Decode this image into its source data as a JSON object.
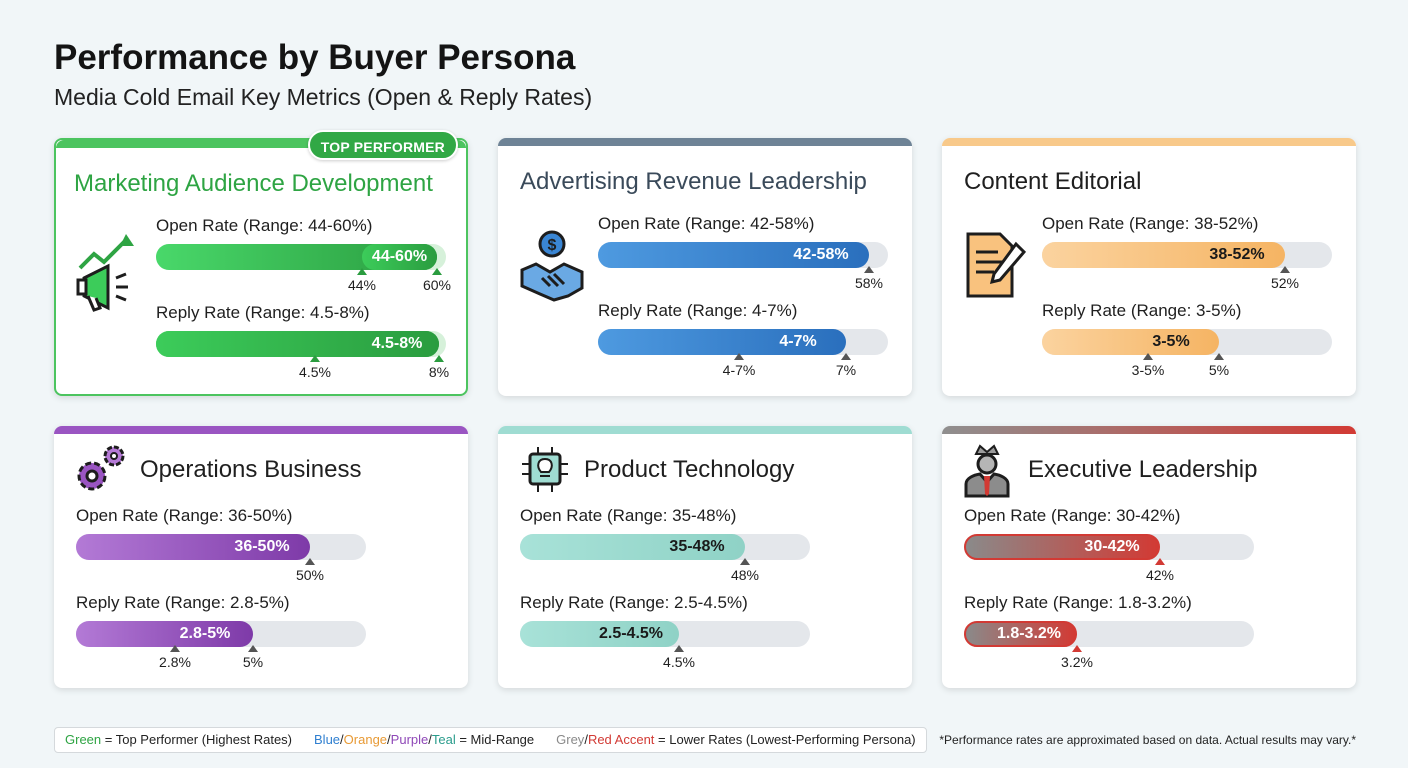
{
  "title": "Performance by Buyer Persona",
  "subtitle": "Media Cold Email Key Metrics (Open & Reply Rates)",
  "chart_data": {
    "type": "bar",
    "title": "Performance by Buyer Persona",
    "subtitle": "Media Cold Email Key Metrics (Open & Reply Rates)",
    "unit": "%",
    "scale_max": 100,
    "personas": [
      {
        "name": "Marketing Audience Development",
        "badge": "TOP PERFORMER",
        "icon": "megaphone-growth-icon",
        "color": "#3ccc5a",
        "open": {
          "label": "Open Rate (Range: 44-60%)",
          "text": "44-60%",
          "low": 44,
          "high": 60,
          "ticks": [
            "44%",
            "60%"
          ]
        },
        "reply": {
          "label": "Reply Rate (Range: 4.5-8%)",
          "text": "4.5-8%",
          "low": 4.5,
          "high": 8,
          "ticks": [
            "4.5%",
            "8%"
          ]
        }
      },
      {
        "name": "Advertising Revenue Leadership",
        "badge": "",
        "icon": "handshake-dollar-icon",
        "color": "#3a86d4",
        "open": {
          "label": "Open Rate (Range: 42-58%)",
          "text": "42-58%",
          "low": 42,
          "high": 58,
          "ticks": [
            "58%"
          ]
        },
        "reply": {
          "label": "Reply Rate (Range: 4-7%)",
          "text": "4-7%",
          "low": 4,
          "high": 7,
          "ticks": [
            "4-7%",
            "7%"
          ]
        }
      },
      {
        "name": "Content Editorial",
        "badge": "",
        "icon": "document-pen-icon",
        "color": "#f9c27e",
        "open": {
          "label": "Open Rate (Range: 38-52%)",
          "text": "38-52%",
          "low": 38,
          "high": 52,
          "ticks": [
            "52%"
          ]
        },
        "reply": {
          "label": "Reply Rate (Range: 3-5%)",
          "text": "3-5%",
          "low": 3,
          "high": 5,
          "ticks": [
            "3-5%",
            "5%"
          ]
        }
      },
      {
        "name": "Operations Business",
        "badge": "",
        "icon": "gears-icon",
        "color": "#9a55c2",
        "open": {
          "label": "Open Rate (Range: 36-50%)",
          "text": "36-50%",
          "low": 36,
          "high": 50,
          "ticks": [
            "50%"
          ]
        },
        "reply": {
          "label": "Reply Rate (Range: 2.8-5%)",
          "text": "2.8-5%",
          "low": 2.8,
          "high": 5,
          "ticks": [
            "2.8%",
            "5%"
          ]
        }
      },
      {
        "name": "Product Technology",
        "badge": "",
        "icon": "lightbulb-chip-icon",
        "color": "#9fdcd2",
        "open": {
          "label": "Open Rate (Range: 35-48%)",
          "text": "35-48%",
          "low": 35,
          "high": 48,
          "ticks": [
            "48%"
          ]
        },
        "reply": {
          "label": "Reply Rate (Range: 2.5-4.5%)",
          "text": "2.5-4.5%",
          "low": 2.5,
          "high": 4.5,
          "ticks": [
            "4.5%"
          ]
        }
      },
      {
        "name": "Executive Leadership",
        "badge": "",
        "icon": "crowned-executive-icon",
        "color": "#d8453f",
        "open": {
          "label": "Open Rate (Range: 30-42%)",
          "text": "30-42%",
          "low": 30,
          "high": 42,
          "ticks": [
            "42%"
          ]
        },
        "reply": {
          "label": "Reply Rate (Range: 1.8-3.2%)",
          "text": "1.8-3.2%",
          "low": 1.8,
          "high": 3.2,
          "ticks": [
            "3.2%"
          ]
        }
      }
    ]
  },
  "legend": {
    "green": "Green",
    "eq1": " = Top Performer (Highest Rates)",
    "blue": "Blue",
    "orange": "Orange",
    "purple": "Purple",
    "teal": "Teal",
    "eq2": " = Mid-Range",
    "grey": "Grey",
    "red": "Red Accent",
    "eq3": " = Lower Rates (Lowest-Performing Persona)",
    "slash": "/"
  },
  "footnote": "*Performance rates are approximated based on data. Actual results may vary.*"
}
